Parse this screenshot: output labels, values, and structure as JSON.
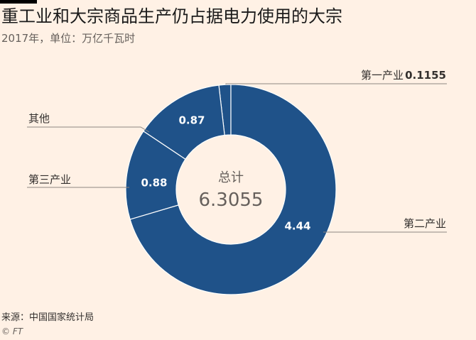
{
  "title": "重工业和大宗商品生产仍占据电力使用的大宗",
  "subtitle": "2017年，单位：万亿千瓦时",
  "source": "来源：中国国家统计局",
  "credit": "© FT",
  "colors": {
    "background": "#FFF1E5",
    "slice": "#1F5289",
    "slice_stroke": "#FFFFFF",
    "leader_line": "#8C8681",
    "label_text": "#33302E",
    "center_text": "#66605C"
  },
  "chart_data": {
    "type": "pie",
    "donut": true,
    "title": "重工业和大宗商品生产仍占据电力使用的大宗",
    "subtitle": "2017年，单位：万亿千瓦时",
    "center_label": "总计",
    "total": "6.3055",
    "slices": [
      {
        "name": "第一产业",
        "value": 0.1155,
        "value_text": "0.1155"
      },
      {
        "name": "第二产业",
        "value": 4.44,
        "value_text": "4.44"
      },
      {
        "name": "第三产业",
        "value": 0.88,
        "value_text": "0.88"
      },
      {
        "name": "其他",
        "value": 0.87,
        "value_text": "0.87"
      }
    ]
  }
}
